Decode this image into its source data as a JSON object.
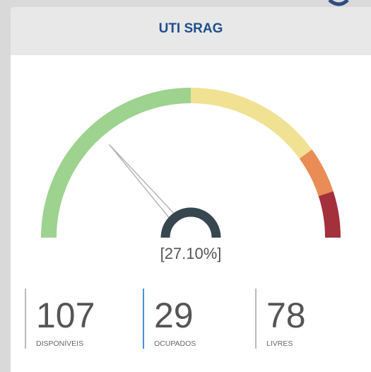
{
  "card": {
    "title": "UTI SRAG"
  },
  "gauge": {
    "range": [
      0,
      100
    ],
    "value": 27.1,
    "value_label": "[27.10%]",
    "bands": [
      {
        "to": 50,
        "color": "#9dd28f"
      },
      {
        "to": 80,
        "color": "#f1e193"
      },
      {
        "to": 90,
        "color": "#ea8c55"
      },
      {
        "to": 100,
        "color": "#a4303b"
      }
    ]
  },
  "stats": [
    {
      "value": "107",
      "label": "DISPONÍVEIS",
      "color": "#bbbbbb"
    },
    {
      "value": "29",
      "label": "OCUPADOS",
      "color": "#4a90d9"
    },
    {
      "value": "78",
      "label": "LIVRES",
      "color": "#bbbbbb"
    }
  ]
}
